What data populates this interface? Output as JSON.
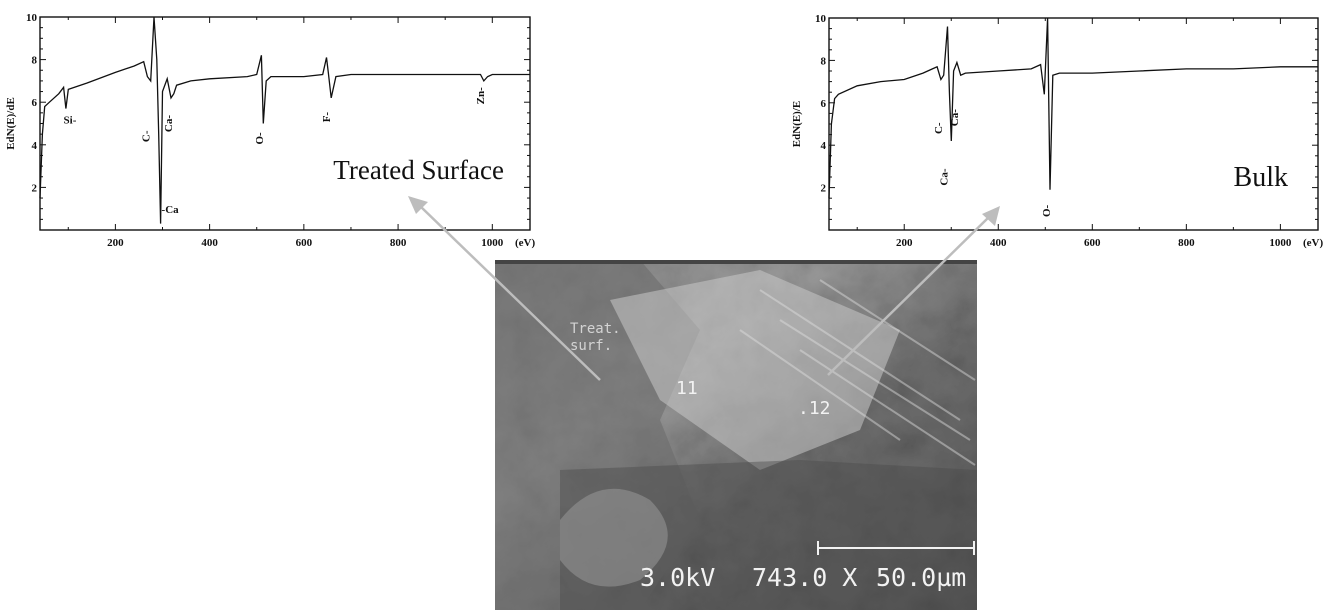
{
  "chart_data": [
    {
      "type": "line",
      "title": "",
      "xlabel": "(eV)",
      "ylabel": "EdN(E)/dE",
      "xlim": [
        40,
        1080
      ],
      "ylim": [
        0,
        10
      ],
      "xticks": [
        200,
        400,
        600,
        800,
        1000
      ],
      "yticks": [
        2,
        4,
        6,
        8,
        10
      ],
      "grid": false,
      "panel_label": "Treated Surface",
      "series": [
        {
          "x": [
            40,
            45,
            50,
            60,
            80,
            90,
            95,
            100,
            140,
            200,
            240,
            260,
            268,
            275,
            282,
            288,
            292,
            296,
            300,
            310,
            318,
            324,
            330,
            360,
            400,
            480,
            500,
            510,
            514,
            520,
            530,
            600,
            640,
            648,
            652,
            658,
            668,
            700,
            800,
            900,
            975,
            982,
            990,
            1000,
            1080
          ],
          "y": [
            1.5,
            4.5,
            5.8,
            6.0,
            6.4,
            6.7,
            5.7,
            6.6,
            6.9,
            7.4,
            7.7,
            7.9,
            7.2,
            7.0,
            10.0,
            8.0,
            4.5,
            0.3,
            6.5,
            7.1,
            6.2,
            6.4,
            6.8,
            7.0,
            7.1,
            7.2,
            7.3,
            8.2,
            5.0,
            7.0,
            7.2,
            7.2,
            7.3,
            8.1,
            7.4,
            6.2,
            7.2,
            7.3,
            7.3,
            7.3,
            7.3,
            7.0,
            7.2,
            7.3,
            7.3
          ]
        }
      ],
      "annotations": [
        {
          "text": "Si-",
          "x": 90,
          "y": 5.0,
          "rotate": 0
        },
        {
          "text": "C-",
          "x": 272,
          "y": 4.4,
          "rotate": -90
        },
        {
          "text": "-Ca",
          "x": 298,
          "y": 0.8,
          "rotate": 0
        },
        {
          "text": "Ca-",
          "x": 320,
          "y": 5.0,
          "rotate": -90
        },
        {
          "text": "O-",
          "x": 513,
          "y": 4.3,
          "rotate": -90
        },
        {
          "text": "F-",
          "x": 656,
          "y": 5.3,
          "rotate": -90
        },
        {
          "text": "Zn-",
          "x": 982,
          "y": 6.3,
          "rotate": -90
        }
      ]
    },
    {
      "type": "line",
      "title": "",
      "xlabel": "(eV)",
      "ylabel": "EdN(E)/E",
      "xlim": [
        40,
        1080
      ],
      "ylim": [
        0,
        10
      ],
      "xticks": [
        200,
        400,
        600,
        800,
        1000
      ],
      "yticks": [
        2,
        4,
        6,
        8,
        10
      ],
      "grid": false,
      "panel_label": "Bulk",
      "series": [
        {
          "x": [
            40,
            45,
            52,
            60,
            100,
            150,
            200,
            240,
            260,
            270,
            278,
            284,
            292,
            296,
            300,
            305,
            312,
            320,
            330,
            400,
            470,
            490,
            498,
            505,
            510,
            516,
            530,
            600,
            700,
            800,
            900,
            1000,
            1080
          ],
          "y": [
            1.5,
            5.0,
            6.2,
            6.4,
            6.8,
            7.0,
            7.1,
            7.4,
            7.6,
            7.7,
            7.1,
            7.3,
            9.6,
            6.5,
            4.2,
            7.5,
            7.9,
            7.3,
            7.4,
            7.5,
            7.6,
            7.8,
            6.4,
            10.0,
            1.9,
            7.3,
            7.4,
            7.4,
            7.5,
            7.6,
            7.6,
            7.7,
            7.7
          ]
        }
      ],
      "annotations": [
        {
          "text": "C-",
          "x": 280,
          "y": 4.8,
          "rotate": -90
        },
        {
          "text": "Ca-",
          "x": 314,
          "y": 5.3,
          "rotate": -90
        },
        {
          "text": "Ca-",
          "x": 292,
          "y": 2.5,
          "rotate": -90
        },
        {
          "text": "O-",
          "x": 510,
          "y": 0.9,
          "rotate": -90
        }
      ]
    }
  ],
  "micrograph": {
    "point_labels": [
      "11",
      ".12"
    ],
    "overlay_text": [
      "Treat.",
      "surf."
    ],
    "kv": "3.0kV",
    "magnification": "743.0 X",
    "scale_bar": "50.0µm"
  }
}
